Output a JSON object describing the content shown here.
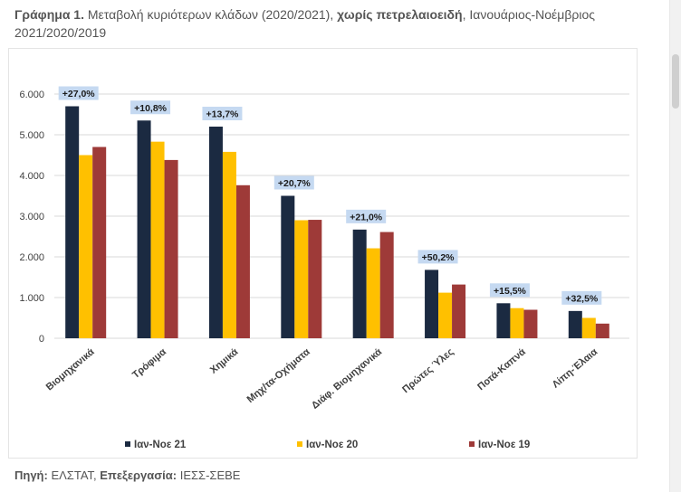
{
  "header": {
    "title_prefix": "Γράφημα 1.",
    "title_part1": " Μεταβολή κυριότερων κλάδων (2020/2021), ",
    "title_bold": "χωρίς πετρελαιοειδή",
    "title_part2": ", Ιανουάριος-Νοέμβριος 2021/2020/2019"
  },
  "footer": {
    "source_label": "Πηγή:",
    "source_value": " ΕΛΣΤΑΤ, ",
    "processing_label": "Επεξεργασία:",
    "processing_value": " ΙΕΣΣ-ΣΕΒΕ"
  },
  "colors": {
    "series": [
      "#1b2a41",
      "#ffc000",
      "#9e3a38"
    ],
    "change_label_bg": "#c5d9f1",
    "grid": "#d9d9d9"
  },
  "chart_data": {
    "type": "bar",
    "title": "",
    "xlabel": "",
    "ylabel": "",
    "ylim": [
      0,
      6000
    ],
    "yticks": [
      0,
      1000,
      2000,
      3000,
      4000,
      5000,
      6000
    ],
    "ytick_labels": [
      "0",
      "1.000",
      "2.000",
      "3.000",
      "4.000",
      "5.000",
      "6.000"
    ],
    "categories": [
      "Βιομηχανικά",
      "Τρόφιμα",
      "Χημικά",
      "Μηχ/τα-Οχήματα",
      "Διάφ. Βιομηχανικά",
      "Πρώτες Ύλες",
      "Ποτά-Καπνά",
      "Λίπη-Έλαια"
    ],
    "series": [
      {
        "name": "Ιαν-Νοε 21",
        "values": [
          5700,
          5350,
          5200,
          3500,
          2670,
          1680,
          860,
          670
        ]
      },
      {
        "name": "Ιαν-Νοε 20",
        "values": [
          4500,
          4830,
          4580,
          2900,
          2210,
          1120,
          740,
          500
        ]
      },
      {
        "name": "Ιαν-Νοε 19",
        "values": [
          4700,
          4380,
          3760,
          2910,
          2610,
          1320,
          700,
          360
        ]
      }
    ],
    "change_labels": [
      "+27,0%",
      "+10,8%",
      "+13,7%",
      "+20,7%",
      "+21,0%",
      "+50,2%",
      "+15,5%",
      "+32,5%"
    ],
    "legend_position": "bottom"
  }
}
